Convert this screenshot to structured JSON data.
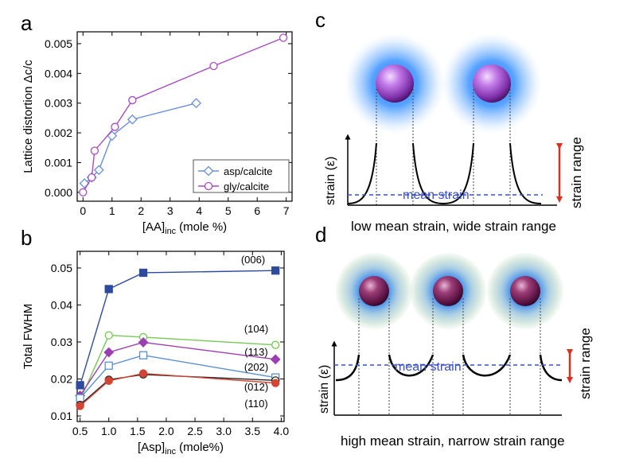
{
  "chart_data": [
    {
      "panel": "a",
      "type": "line",
      "xlabel_main": "[AA]",
      "xlabel_sub": "inc",
      "xlabel_tail": " (mole %)",
      "ylabel": "Lattice distortion Δc/c",
      "xlim": [
        -0.2,
        7.2
      ],
      "ylim": [
        -0.0003,
        0.0054
      ],
      "xticks": [
        0,
        1,
        2,
        3,
        4,
        5,
        6,
        7
      ],
      "xtick_labels": [
        "0",
        "1",
        "2",
        "3",
        "4",
        "5",
        "6",
        "7"
      ],
      "yticks": [
        0.0,
        0.001,
        0.002,
        0.003,
        0.004,
        0.005
      ],
      "ytick_labels": [
        "0.000",
        "0.001",
        "0.002",
        "0.003",
        "0.004",
        "0.005"
      ],
      "legend_position": "bottom-right",
      "series": [
        {
          "name": "asp/calcite",
          "color": "#6a8fd8",
          "marker": "diamond-open",
          "x": [
            0.05,
            0.3,
            0.55,
            1.0,
            1.7,
            3.9
          ],
          "y": [
            0.0003,
            0.0005,
            0.00075,
            0.0019,
            0.00245,
            0.003
          ]
        },
        {
          "name": "gly/calcite",
          "color": "#a64dc0",
          "marker": "circle-open",
          "x": [
            0.0,
            0.3,
            0.4,
            1.1,
            1.7,
            4.5,
            6.9
          ],
          "y": [
            0.0,
            0.0005,
            0.0014,
            0.0022,
            0.0031,
            0.00425,
            0.0052
          ]
        }
      ]
    },
    {
      "panel": "b",
      "type": "line",
      "xlabel_main": "[Asp]",
      "xlabel_sub": "inc",
      "xlabel_tail": " (mole%)",
      "ylabel": "Total FWHM",
      "xlim": [
        0.45,
        4.05
      ],
      "ylim": [
        0.0085,
        0.0545
      ],
      "xticks": [
        0.5,
        1.0,
        1.5,
        2.0,
        2.5,
        3.0,
        3.5,
        4.0
      ],
      "xtick_labels": [
        "0.5",
        "1.0",
        "1.5",
        "2.0",
        "2.5",
        "3.0",
        "3.5",
        "4.0"
      ],
      "yticks": [
        0.01,
        0.02,
        0.03,
        0.04,
        0.05
      ],
      "ytick_labels": [
        "0.01",
        "0.02",
        "0.03",
        "0.04",
        "0.05"
      ],
      "x": [
        0.5,
        1.0,
        1.6,
        3.9
      ],
      "series": [
        {
          "name": "(006)",
          "color": "#2d4a9e",
          "marker": "square-filled",
          "values": [
            0.0183,
            0.0443,
            0.0487,
            0.0493
          ]
        },
        {
          "name": "(104)",
          "color": "#76c857",
          "marker": "circle-open",
          "values": [
            0.0142,
            0.0318,
            0.0313,
            0.0292
          ]
        },
        {
          "name": "(113)",
          "color": "#9b3fb0",
          "marker": "diamond-filled",
          "values": [
            0.0155,
            0.0272,
            0.0299,
            0.0253
          ]
        },
        {
          "name": "(202)",
          "color": "#5b8fcf",
          "marker": "square-open",
          "values": [
            0.0148,
            0.0236,
            0.0264,
            0.0204
          ]
        },
        {
          "name": "(012)",
          "color": "#222222",
          "marker": "circle-open",
          "values": [
            0.013,
            0.0198,
            0.0212,
            0.0196
          ]
        },
        {
          "name": "(110)",
          "color": "#d24535",
          "marker": "circle-filled",
          "values": [
            0.0127,
            0.0195,
            0.0215,
            0.0189
          ]
        }
      ]
    }
  ],
  "panels": {
    "a": {
      "label": "a"
    },
    "b": {
      "label": "b"
    },
    "c": {
      "label": "c",
      "ylabel": "strain (ε)",
      "mean_label": "mean strain",
      "range_label": "strain range",
      "caption": "low mean strain, wide strain range"
    },
    "d": {
      "label": "d",
      "ylabel": "strain (ε)",
      "mean_label": "mean strain",
      "range_label": "strain range",
      "caption": "high mean strain, narrow strain range"
    }
  }
}
